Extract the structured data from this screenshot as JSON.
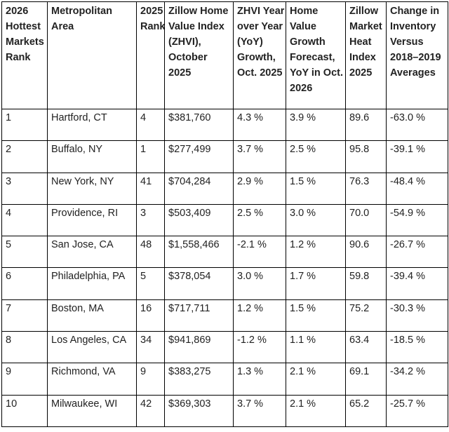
{
  "table": {
    "header": [
      [
        "2026",
        "Hottest",
        "Markets",
        "Rank"
      ],
      [
        "Metropolitan",
        "Area"
      ],
      [
        "2025",
        "Rank"
      ],
      [
        "Zillow Home",
        "Value Index",
        "(ZHVI),",
        "October",
        "2025"
      ],
      [
        "ZHVI Year",
        "over Year",
        "(YoY)",
        "Growth,",
        "Oct. 2025"
      ],
      [
        "Home",
        "Value",
        "Growth",
        "Forecast,",
        "YoY in Oct.",
        "2026"
      ],
      [
        "Zillow",
        "Market",
        "Heat",
        "Index",
        "2025"
      ],
      [
        "Change in",
        "Inventory",
        "Versus",
        "2018–2019",
        "Averages"
      ]
    ],
    "rows": [
      [
        "1",
        "Hartford, CT",
        "4",
        "$381,760",
        "4.3 %",
        "3.9 %",
        "89.6",
        "-63.0 %"
      ],
      [
        "2",
        "Buffalo, NY",
        "1",
        "$277,499",
        "3.7 %",
        "2.5 %",
        "95.8",
        "-39.1 %"
      ],
      [
        "3",
        "New York, NY",
        "41",
        "$704,284",
        "2.9 %",
        "1.5 %",
        "76.3",
        "-48.4 %"
      ],
      [
        "4",
        "Providence, RI",
        "3",
        "$503,409",
        "2.5 %",
        "3.0 %",
        "70.0",
        "-54.9 %"
      ],
      [
        "5",
        "San Jose, CA",
        "48",
        "$1,558,466",
        "-2.1 %",
        "1.2 %",
        "90.6",
        "-26.7 %"
      ],
      [
        "6",
        "Philadelphia, PA",
        "5",
        "$378,054",
        "3.0 %",
        "1.7 %",
        "59.8",
        "-39.4 %"
      ],
      [
        "7",
        "Boston, MA",
        "16",
        "$717,711",
        "1.2 %",
        "1.5 %",
        "75.2",
        "-30.3 %"
      ],
      [
        "8",
        "Los Angeles, CA",
        "34",
        "$941,869",
        "-1.2 %",
        "1.1 %",
        "63.4",
        "-18.5 %"
      ],
      [
        "9",
        "Richmond, VA",
        "9",
        "$383,275",
        "1.3 %",
        "2.1 %",
        "69.1",
        "-34.2 %"
      ],
      [
        "10",
        "Milwaukee, WI",
        "42",
        "$369,303",
        "3.7 %",
        "2.1 %",
        "65.2",
        "-25.7 %"
      ]
    ]
  }
}
